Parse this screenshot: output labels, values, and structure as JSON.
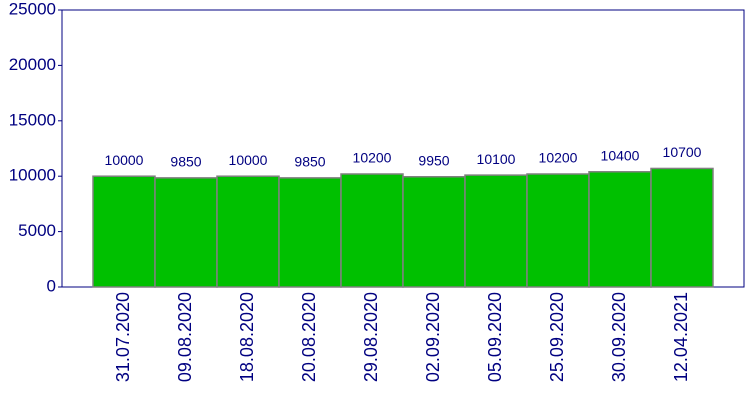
{
  "chart_data": {
    "type": "bar",
    "categories": [
      "31.07.2020",
      "09.08.2020",
      "18.08.2020",
      "20.08.2020",
      "29.08.2020",
      "02.09.2020",
      "05.09.2020",
      "25.09.2020",
      "30.09.2020",
      "12.04.2021"
    ],
    "values": [
      10000,
      9850,
      10000,
      9850,
      10200,
      9950,
      10100,
      10200,
      10400,
      10700
    ],
    "color": "#00c000",
    "ylim": [
      0,
      25000
    ],
    "yticks": [
      0,
      5000,
      10000,
      15000,
      20000,
      25000
    ],
    "grid": false
  }
}
